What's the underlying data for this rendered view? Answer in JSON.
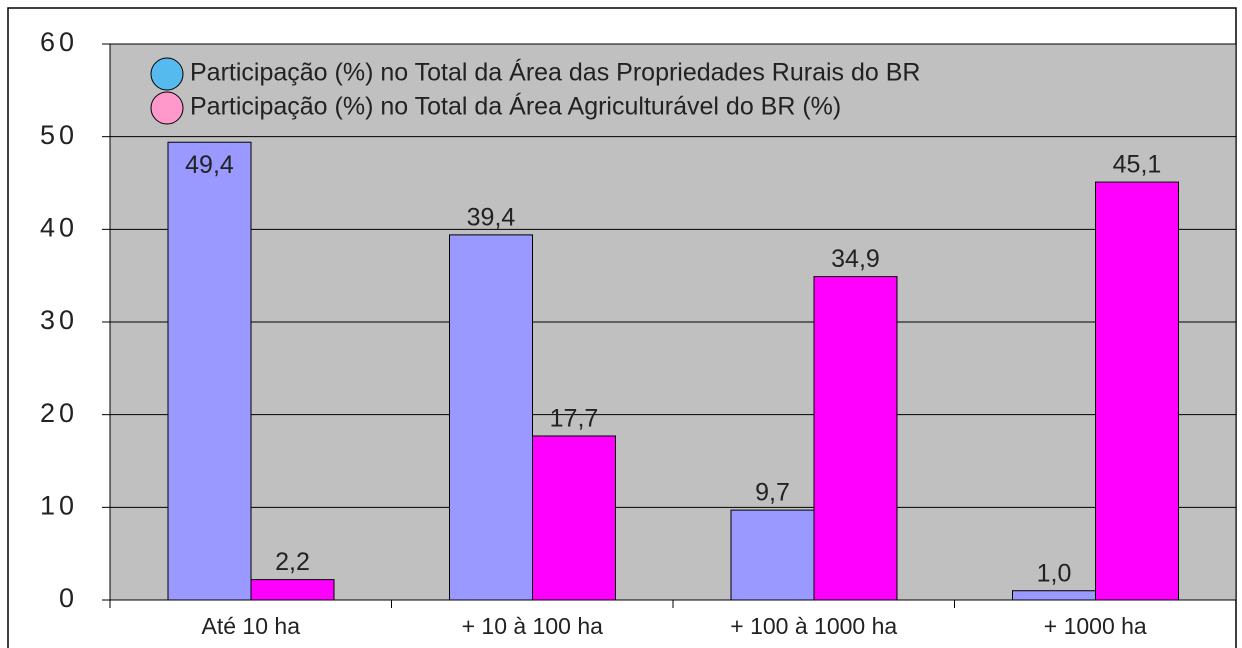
{
  "chart_data": {
    "type": "bar",
    "categories": [
      "Até 10 ha",
      "+ 10 à 100 ha",
      "+ 100 à 1000 ha",
      "+ 1000 ha"
    ],
    "series": [
      {
        "name": "Participação (%) no Total da Área das Propriedades Rurais do BR",
        "color": "#9999ff",
        "marker_color": "#55bbee",
        "values": [
          49.4,
          39.4,
          9.7,
          1.0
        ],
        "value_labels": [
          "49,4",
          "39,4",
          "9,7",
          "1,0"
        ]
      },
      {
        "name": "Participação (%) no Total da Área  Agriculturável do BR (%)",
        "color": "#ff00ff",
        "marker_color": "#ff99cc",
        "values": [
          2.2,
          17.7,
          34.9,
          45.1
        ],
        "value_labels": [
          "2,2",
          "17,7",
          "34,9",
          "45,1"
        ]
      }
    ],
    "ylim": [
      0,
      60
    ],
    "yticks": [
      0,
      10,
      20,
      30,
      40,
      50,
      60
    ],
    "grid": true,
    "legend": "top-left"
  }
}
